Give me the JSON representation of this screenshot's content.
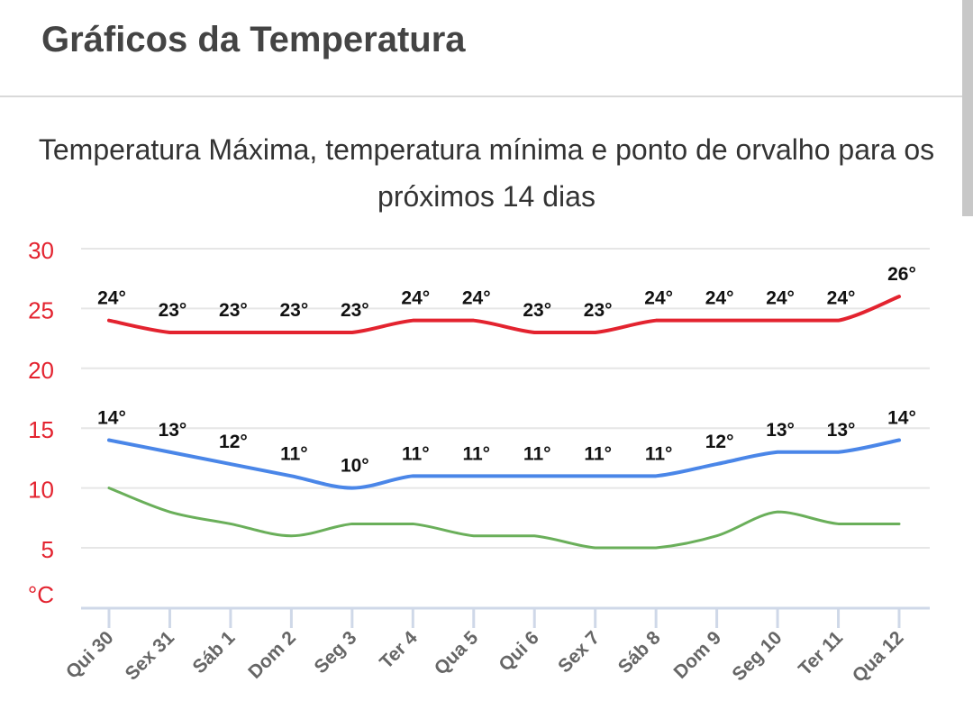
{
  "header": {
    "title": "Gráficos da Temperatura"
  },
  "chart_data": {
    "type": "line",
    "title": "Temperatura Máxima, temperatura mínima e ponto de orvalho para os próximos 14 dias",
    "ylabel": "°C",
    "ylim": [
      0,
      30
    ],
    "yticks": [
      "30",
      "25",
      "20",
      "15",
      "10",
      "5"
    ],
    "categories": [
      "Qui 30",
      "Sex 31",
      "Sáb 1",
      "Dom 2",
      "Seg 3",
      "Ter 4",
      "Qua 5",
      "Qui 6",
      "Sex 7",
      "Sáb 8",
      "Dom 9",
      "Seg 10",
      "Ter 11",
      "Qua 12"
    ],
    "series": [
      {
        "key": "max",
        "color": "#e3232f",
        "labels": true,
        "values": [
          24,
          23,
          23,
          23,
          23,
          24,
          24,
          23,
          23,
          24,
          24,
          24,
          24,
          26
        ]
      },
      {
        "key": "min",
        "color": "#4a86e8",
        "labels": true,
        "values": [
          14,
          13,
          12,
          11,
          10,
          11,
          11,
          11,
          11,
          11,
          12,
          13,
          13,
          14
        ]
      },
      {
        "key": "dew",
        "color": "#6aaf5a",
        "labels": false,
        "values": [
          10,
          8,
          7,
          6,
          7,
          7,
          6,
          6,
          5,
          5,
          6,
          8,
          7,
          7
        ]
      }
    ],
    "label_suffix": "°",
    "axis_color": "#e3232f",
    "grid": true,
    "legend": "none"
  }
}
